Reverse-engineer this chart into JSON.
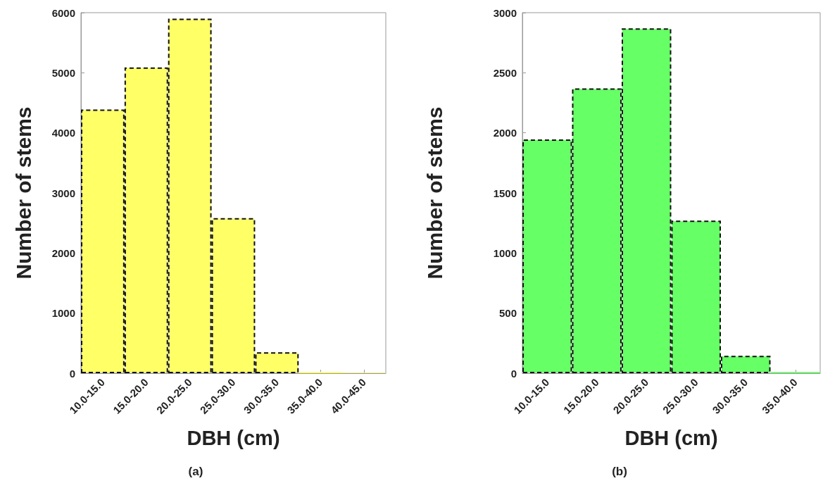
{
  "chart_data": [
    {
      "type": "bar",
      "categories": [
        "10.0-15.0",
        "15.0-20.0",
        "20.0-25.0",
        "25.0-30.0",
        "30.0-35.0",
        "35.0-40.0",
        "40.0-45.0"
      ],
      "values": [
        4390,
        5090,
        5900,
        2580,
        350,
        20,
        10
      ],
      "color": "#ffff66",
      "xlabel": "DBH (cm)",
      "ylabel": "Number of stems",
      "ylim": [
        0,
        6000
      ],
      "yticks": [
        0,
        1000,
        2000,
        3000,
        4000,
        5000,
        6000
      ],
      "grid": false,
      "annotations": [
        "(a)"
      ]
    },
    {
      "type": "bar",
      "categories": [
        "10.0-15.0",
        "15.0-20.0",
        "20.0-25.0",
        "25.0-30.0",
        "30.0-35.0",
        "35.0-40.0"
      ],
      "values": [
        1945,
        2370,
        2870,
        1270,
        145,
        10
      ],
      "color": "#66ff66",
      "xlabel": "DBH (cm)",
      "ylabel": "Number of stems",
      "ylim": [
        0,
        3000
      ],
      "yticks": [
        0,
        500,
        1000,
        1500,
        2000,
        2500,
        3000
      ],
      "grid": false,
      "annotations": [
        "(b)"
      ]
    }
  ]
}
